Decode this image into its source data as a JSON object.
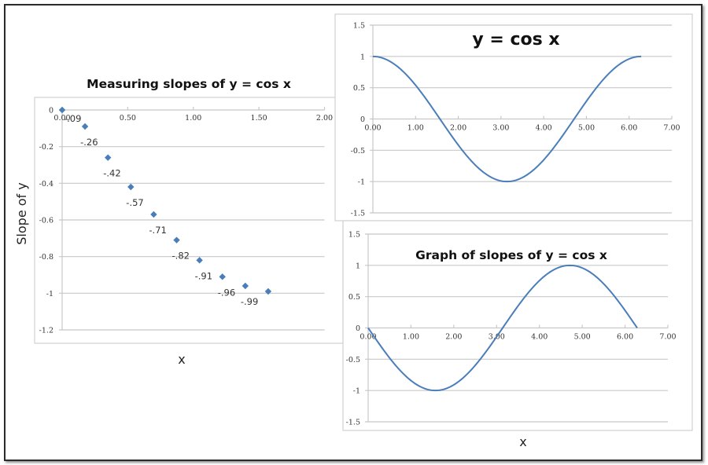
{
  "colors": {
    "series": "#4a7ebb",
    "grid": "#c8c8c8",
    "frame": "#2b2b2b"
  },
  "chart_data": [
    {
      "id": "measuring-slopes",
      "type": "scatter",
      "title": "Measuring slopes of y = cos x",
      "xlabel": "x",
      "ylabel": "Slope of y",
      "xlim": [
        0,
        2
      ],
      "ylim": [
        -1.2,
        0
      ],
      "x_ticks": [
        0,
        0.5,
        1.0,
        1.5,
        2.0
      ],
      "x_tick_labels": [
        "0.00",
        "0.50",
        "1.00",
        "1.50",
        "2.00"
      ],
      "y_ticks": [
        0,
        -0.2,
        -0.4,
        -0.6,
        -0.8,
        -1,
        -1.2
      ],
      "y_tick_labels": [
        "0",
        "-0.2",
        "-0.4",
        "-0.6",
        "-0.8",
        "-1",
        "-1.2"
      ],
      "grid": true,
      "x_axis_position": "top",
      "legend": "none",
      "x": [
        0,
        0.1745,
        0.3491,
        0.5236,
        0.6981,
        0.8727,
        1.0472,
        1.2217,
        1.3963,
        1.5708
      ],
      "y": [
        0,
        -0.09,
        -0.26,
        -0.42,
        -0.57,
        -0.71,
        -0.82,
        -0.91,
        -0.96,
        -0.99
      ],
      "point_labels": [
        "",
        "-.09",
        "-.26",
        "-.42",
        "-.57",
        "-.71",
        "-.82",
        "-.91",
        "-.96",
        "-.99"
      ]
    },
    {
      "id": "cos-x",
      "type": "line",
      "title": "y = cos x",
      "xlabel": "",
      "ylabel": "",
      "function": "cos(x)",
      "x_range": [
        0,
        6.2832
      ],
      "xlim": [
        0,
        7
      ],
      "ylim": [
        -1.5,
        1.5
      ],
      "x_ticks": [
        0,
        1,
        2,
        3,
        4,
        5,
        6,
        7
      ],
      "x_tick_labels": [
        "0.00",
        "1.00",
        "2.00",
        "3.00",
        "4.00",
        "5.00",
        "6.00",
        "7.00"
      ],
      "y_ticks": [
        1.5,
        1,
        0.5,
        0,
        -0.5,
        -1,
        -1.5
      ],
      "y_tick_labels": [
        "1.5",
        "1",
        "0.5",
        "0",
        "-0.5",
        "-1",
        "-1.5"
      ],
      "grid": true,
      "legend": "none",
      "x": [
        0,
        0.5236,
        1.0472,
        1.5708,
        2.0944,
        2.618,
        3.1416,
        3.6652,
        4.1888,
        4.7124,
        5.236,
        5.7596,
        6.2832
      ],
      "y": [
        1,
        0.866,
        0.5,
        0,
        -0.5,
        -0.866,
        -1,
        -0.866,
        -0.5,
        0,
        0.5,
        0.866,
        1
      ]
    },
    {
      "id": "slopes-of-cos-x",
      "type": "line",
      "title": "Graph of slopes of y = cos x",
      "xlabel": "x",
      "ylabel": "",
      "function": "-sin(x)",
      "x_range": [
        0,
        6.2832
      ],
      "xlim": [
        0,
        7
      ],
      "ylim": [
        -1.5,
        1.5
      ],
      "x_ticks": [
        0,
        1,
        2,
        3,
        4,
        5,
        6,
        7
      ],
      "x_tick_labels": [
        "0.00",
        "1.00",
        "2.00",
        "3.00",
        "4.00",
        "5.00",
        "6.00",
        "7.00"
      ],
      "y_ticks": [
        1.5,
        1,
        0.5,
        0,
        -0.5,
        -1,
        -1.5
      ],
      "y_tick_labels": [
        "1.5",
        "1",
        "0.5",
        "0",
        "-0.5",
        "-1",
        "-1.5"
      ],
      "grid": true,
      "legend": "none",
      "x": [
        0,
        0.5236,
        1.0472,
        1.5708,
        2.0944,
        2.618,
        3.1416,
        3.6652,
        4.1888,
        4.7124,
        5.236,
        5.7596,
        6.2832
      ],
      "y": [
        0,
        -0.5,
        -0.866,
        -1,
        -0.866,
        -0.5,
        0,
        0.5,
        0.866,
        1,
        0.866,
        0.5,
        0
      ]
    }
  ]
}
